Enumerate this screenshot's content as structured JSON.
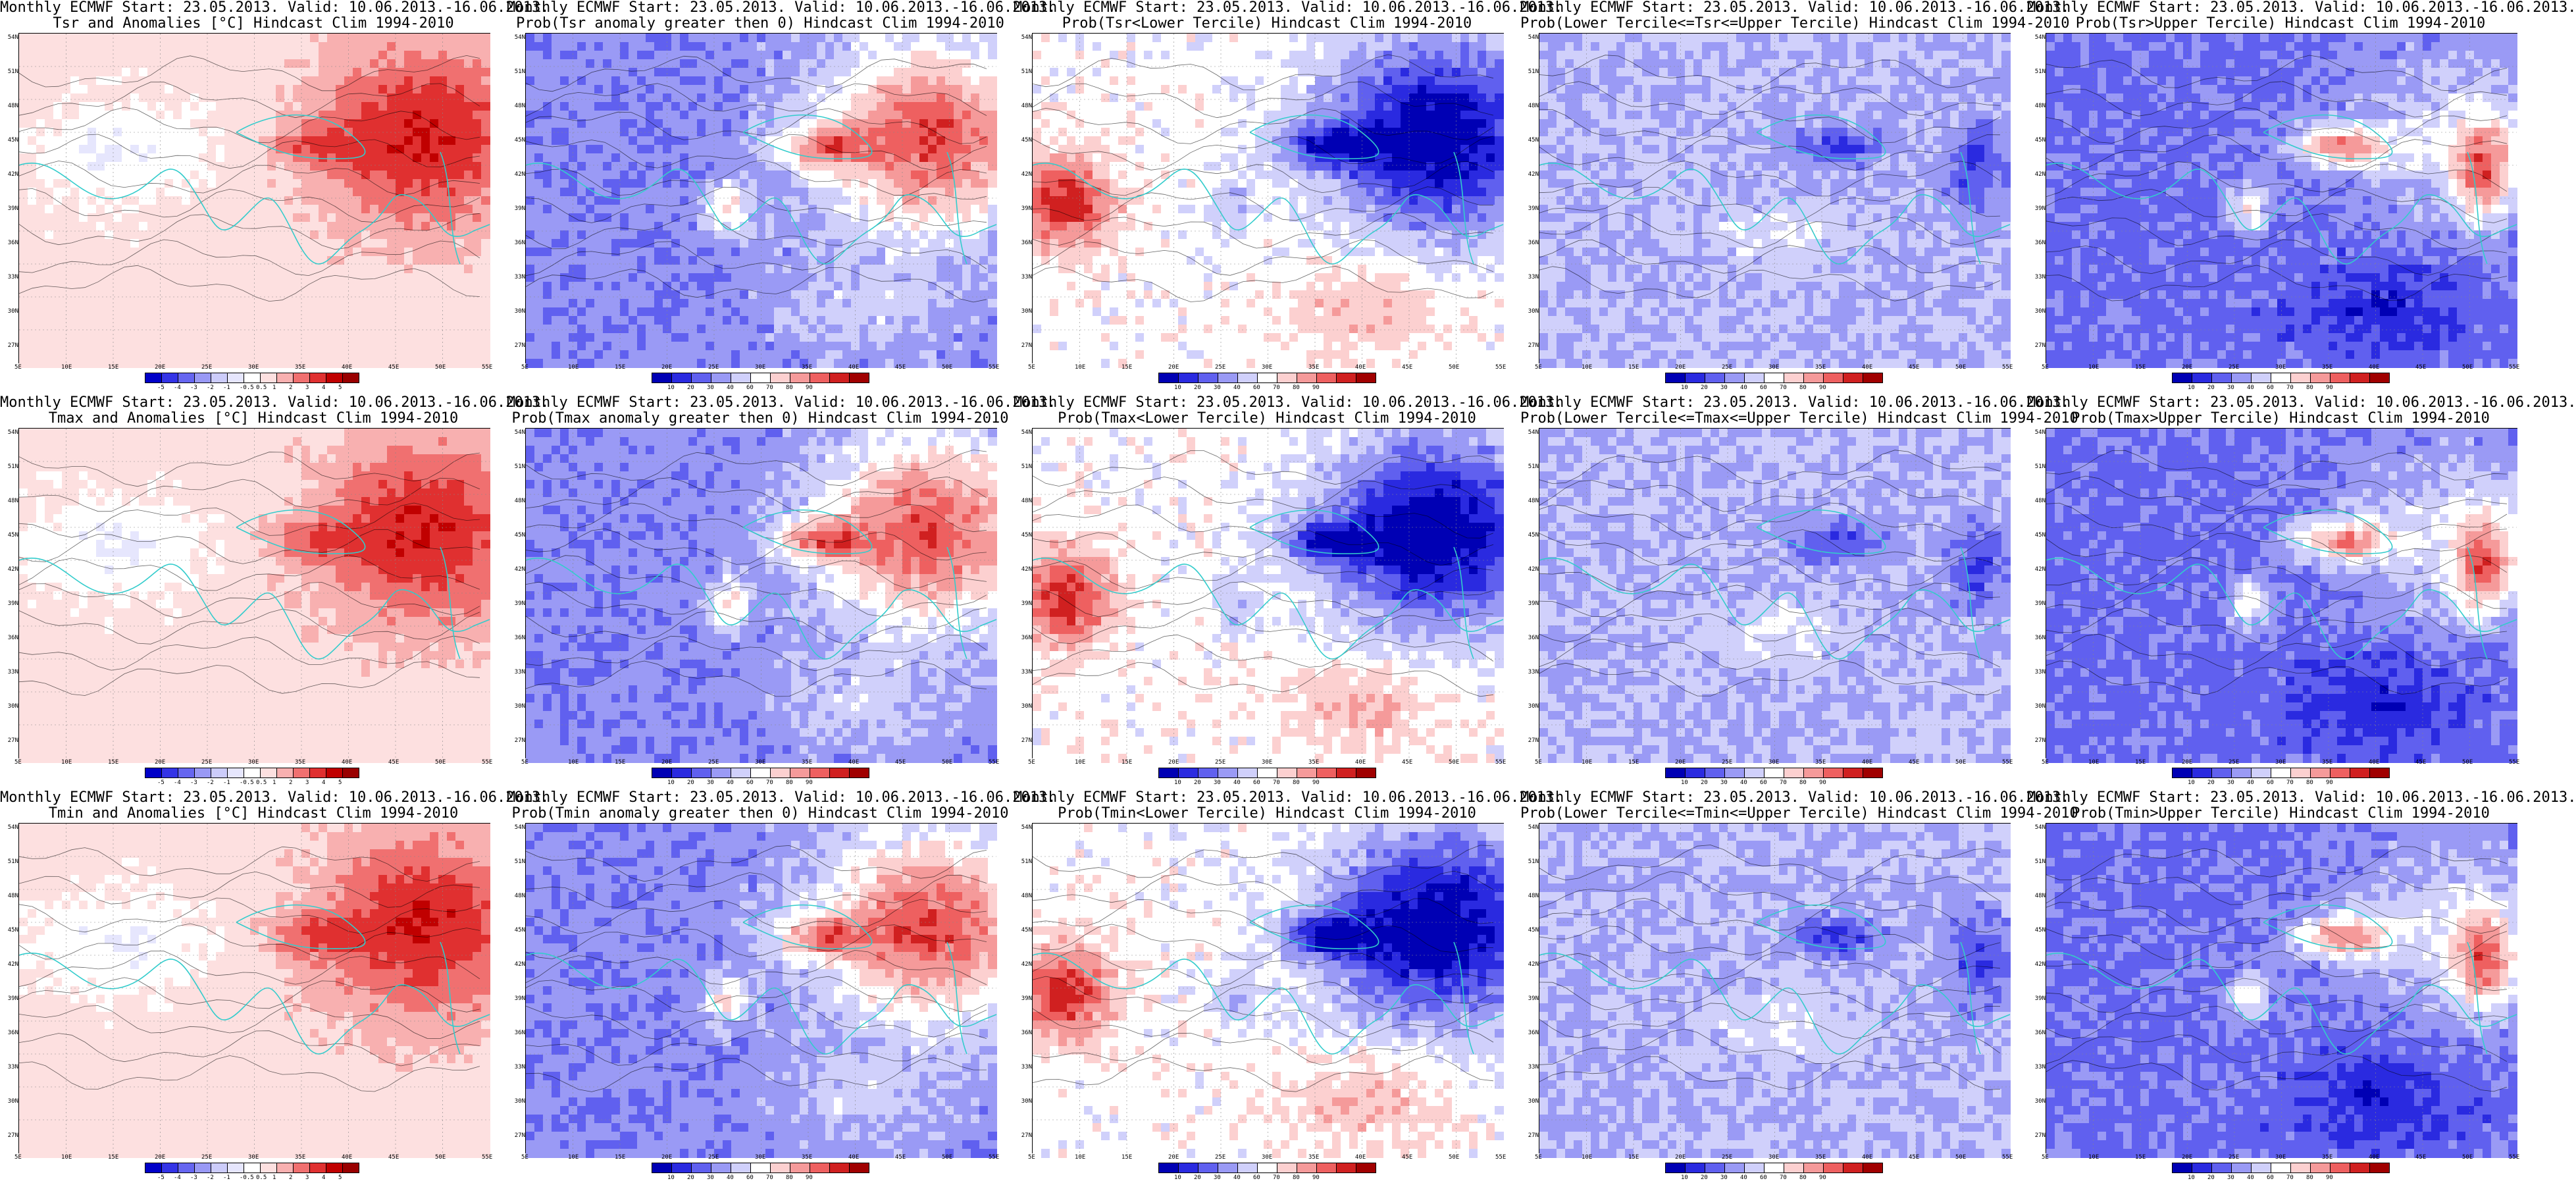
{
  "panels": [
    {
      "title1": "Monthly ECMWF Start: 23.05.2013. Valid: 10.06.2013.-16.06.2013.",
      "title2": "Tsr and Anomalies [°C] Hindcast Clim 1994-2010",
      "kind": "anom",
      "cbar": [
        "-5",
        "-4",
        "-3",
        "-2",
        "-1",
        "-0.5",
        "0.5",
        "1",
        "2",
        "3",
        "4",
        "5"
      ]
    },
    {
      "title1": "Monthly ECMWF Start: 23.05.2013. Valid: 10.06.2013.-16.06.2013.",
      "title2": "Prob(Tsr anomaly greater then 0) Hindcast Clim 1994-2010",
      "kind": "pgt0",
      "cbar": [
        "10",
        "20",
        "30",
        "40",
        "60",
        "70",
        "80",
        "90"
      ]
    },
    {
      "title1": "Monthly ECMWF Start: 23.05.2013. Valid: 10.06.2013.-16.06.2013.",
      "title2": "Prob(Tsr<Lower Tercile) Hindcast Clim 1994-2010",
      "kind": "plow",
      "cbar": [
        "10",
        "20",
        "30",
        "40",
        "60",
        "70",
        "80",
        "90"
      ]
    },
    {
      "title1": "Monthly ECMWF Start: 23.05.2013. Valid: 10.06.2013.-16.06.2013.",
      "title2": "Prob(Lower Tercile<=Tsr<=Upper Tercile) Hindcast Clim 1994-2010",
      "kind": "pmid",
      "cbar": [
        "10",
        "20",
        "30",
        "40",
        "60",
        "70",
        "80",
        "90"
      ]
    },
    {
      "title1": "Monthly ECMWF Start: 23.05.2013. Valid: 10.06.2013.-16.06.2013.",
      "title2": "Prob(Tsr>Upper Tercile) Hindcast Clim 1994-2010",
      "kind": "pup",
      "cbar": [
        "10",
        "20",
        "30",
        "40",
        "60",
        "70",
        "80",
        "90"
      ]
    },
    {
      "title1": "Monthly ECMWF Start: 23.05.2013. Valid: 10.06.2013.-16.06.2013.",
      "title2": "Tmax and Anomalies [°C] Hindcast Clim 1994-2010",
      "kind": "anom",
      "cbar": [
        "-5",
        "-4",
        "-3",
        "-2",
        "-1",
        "-0.5",
        "0.5",
        "1",
        "2",
        "3",
        "4",
        "5"
      ]
    },
    {
      "title1": "Monthly ECMWF Start: 23.05.2013. Valid: 10.06.2013.-16.06.2013.",
      "title2": "Prob(Tmax anomaly greater then 0) Hindcast Clim 1994-2010",
      "kind": "pgt0",
      "cbar": [
        "10",
        "20",
        "30",
        "40",
        "60",
        "70",
        "80",
        "90"
      ]
    },
    {
      "title1": "Monthly ECMWF Start: 23.05.2013. Valid: 10.06.2013.-16.06.2013.",
      "title2": "Prob(Tmax<Lower Tercile) Hindcast Clim 1994-2010",
      "kind": "plow",
      "cbar": [
        "10",
        "20",
        "30",
        "40",
        "60",
        "70",
        "80",
        "90"
      ]
    },
    {
      "title1": "Monthly ECMWF Start: 23.05.2013. Valid: 10.06.2013.-16.06.2013.",
      "title2": "Prob(Lower Tercile<=Tmax<=Upper Tercile) Hindcast Clim 1994-2010",
      "kind": "pmid",
      "cbar": [
        "10",
        "20",
        "30",
        "40",
        "60",
        "70",
        "80",
        "90"
      ]
    },
    {
      "title1": "Monthly ECMWF Start: 23.05.2013. Valid: 10.06.2013.-16.06.2013.",
      "title2": "Prob(Tmax>Upper Tercile) Hindcast Clim 1994-2010",
      "kind": "pup",
      "cbar": [
        "10",
        "20",
        "30",
        "40",
        "60",
        "70",
        "80",
        "90"
      ]
    },
    {
      "title1": "Monthly ECMWF Start: 23.05.2013. Valid: 10.06.2013.-16.06.2013.",
      "title2": "Tmin and Anomalies [°C] Hindcast Clim 1994-2010",
      "kind": "anom",
      "cbar": [
        "-5",
        "-4",
        "-3",
        "-2",
        "-1",
        "-0.5",
        "0.5",
        "1",
        "2",
        "3",
        "4",
        "5"
      ]
    },
    {
      "title1": "Monthly ECMWF Start: 23.05.2013. Valid: 10.06.2013.-16.06.2013.",
      "title2": "Prob(Tmin anomaly greater then 0) Hindcast Clim 1994-2010",
      "kind": "pgt0",
      "cbar": [
        "10",
        "20",
        "30",
        "40",
        "60",
        "70",
        "80",
        "90"
      ]
    },
    {
      "title1": "Monthly ECMWF Start: 23.05.2013. Valid: 10.06.2013.-16.06.2013.",
      "title2": "Prob(Tmin<Lower Tercile) Hindcast Clim 1994-2010",
      "kind": "plow",
      "cbar": [
        "10",
        "20",
        "30",
        "40",
        "60",
        "70",
        "80",
        "90"
      ]
    },
    {
      "title1": "Monthly ECMWF Start: 23.05.2013. Valid: 10.06.2013.-16.06.2013.",
      "title2": "Prob(Lower Tercile<=Tmin<=Upper Tercile) Hindcast Clim 1994-2010",
      "kind": "pmid",
      "cbar": [
        "10",
        "20",
        "30",
        "40",
        "60",
        "70",
        "80",
        "90"
      ]
    },
    {
      "title1": "Monthly ECMWF Start: 23.05.2013. Valid: 10.06.2013.-16.06.2013.",
      "title2": "Prob(Tmin>Upper Tercile) Hindcast Clim 1994-2010",
      "kind": "pup",
      "cbar": [
        "10",
        "20",
        "30",
        "40",
        "60",
        "70",
        "80",
        "90"
      ]
    }
  ],
  "lat_labels": [
    "54N",
    "51N",
    "48N",
    "45N",
    "42N",
    "39N",
    "36N",
    "33N",
    "30N",
    "27N"
  ],
  "lon_labels": [
    "5E",
    "10E",
    "15E",
    "20E",
    "25E",
    "30E",
    "35E",
    "40E",
    "45E",
    "50E",
    "55E"
  ],
  "colors": {
    "anom": [
      "#0000c8",
      "#3333e6",
      "#6666f0",
      "#9999f5",
      "#ccccfa",
      "#e6e6fd",
      "#ffffff",
      "#fde0e0",
      "#f8b0b0",
      "#f07070",
      "#e03030",
      "#c00000",
      "#990000"
    ],
    "prob": [
      "#0000b4",
      "#2a2ae0",
      "#6060ef",
      "#9a9af5",
      "#d0d0fb",
      "#ffffff",
      "#fcd0d0",
      "#f59a9a",
      "#ee6060",
      "#d02020",
      "#a00000"
    ],
    "coast": "#33cccc",
    "contour": "#000000"
  }
}
